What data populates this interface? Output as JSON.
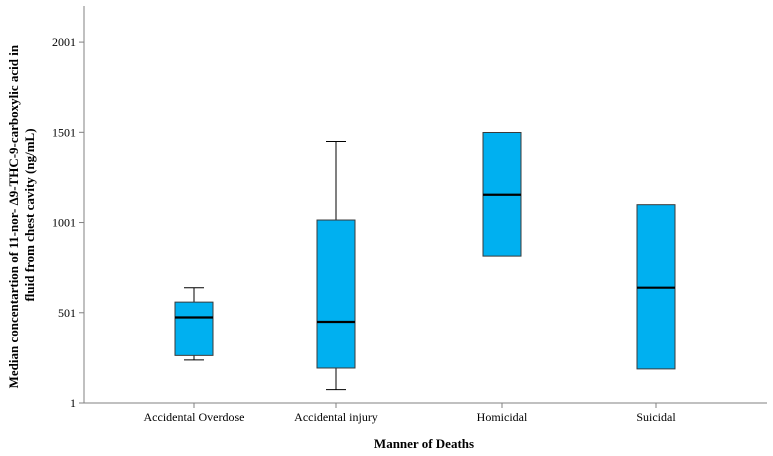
{
  "chart_data": {
    "type": "box",
    "title": "",
    "xlabel": "Manner of Deaths",
    "ylabel_lines": [
      "Median concentartion of 11-nor- Δ9-THC-9-carboxylic acid in",
      "fluid from chest cavity (ng/mL)"
    ],
    "ylim": [
      1,
      2201
    ],
    "yticks": [
      1,
      501,
      1001,
      1501,
      2001
    ],
    "grid": false,
    "colors": {
      "box_fill": "#00b0f0",
      "median": "#000000",
      "whisker": "#000000"
    },
    "categories": [
      "Accidental Overdose",
      "Accidental injury",
      "Homicidal",
      "Suicidal"
    ],
    "boxes": [
      {
        "category": "Accidental Overdose",
        "min": 240,
        "q1": 265,
        "median": 475,
        "q3": 560,
        "max": 640
      },
      {
        "category": "Accidental injury",
        "min": 75,
        "q1": 195,
        "median": 450,
        "q3": 1015,
        "max": 1450
      },
      {
        "category": "Homicidal",
        "min": 815,
        "q1": 815,
        "median": 1155,
        "q3": 1500,
        "max": 1500
      },
      {
        "category": "Suicidal",
        "min": 190,
        "q1": 190,
        "median": 640,
        "q3": 1100,
        "max": 1100
      }
    ]
  }
}
